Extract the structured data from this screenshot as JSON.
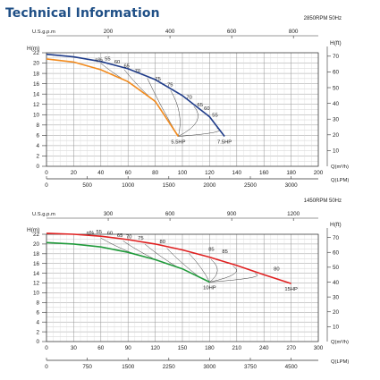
{
  "page": {
    "title": "Technical Information"
  },
  "chart_data": [
    {
      "type": "line",
      "header": "2850RPM  50Hz",
      "xlabel": "Q(m³/h)",
      "x2label": "Q(LPM)",
      "ylabel": "H(m)",
      "y2label": "H(ft)",
      "top_label": "U.S.g.p.m",
      "xlim": [
        0,
        200
      ],
      "ylim": [
        0,
        22
      ],
      "xticks": [
        0,
        20,
        40,
        60,
        80,
        100,
        120,
        140,
        160,
        180,
        200
      ],
      "yticks": [
        0,
        2,
        4,
        6,
        8,
        10,
        12,
        14,
        16,
        18,
        20,
        22
      ],
      "x2ticks": [
        "0",
        "500",
        "1000",
        "1500",
        "2000",
        "2500",
        "3000"
      ],
      "x2_lpm": [
        0,
        500,
        1000,
        1500,
        2000,
        2500,
        3000
      ],
      "x3ticks": [
        "200",
        "400",
        "600",
        "800"
      ],
      "x3_gpm": [
        200,
        400,
        600,
        800
      ],
      "y2ticks": [
        "70",
        "60",
        "50",
        "40",
        "30",
        "20",
        "10"
      ],
      "y2_ft": [
        70,
        60,
        50,
        40,
        30,
        20,
        10
      ],
      "grid": true,
      "series": [
        {
          "name": "7.5HP",
          "color": "#1f3c8a",
          "x": [
            0,
            20,
            40,
            60,
            80,
            100,
            120,
            131
          ],
          "y": [
            21.7,
            21.2,
            20.3,
            18.9,
            16.8,
            13.7,
            9.6,
            5.8
          ]
        },
        {
          "name": "5.5HP",
          "color": "#f28a1c",
          "x": [
            0,
            20,
            40,
            60,
            80,
            97
          ],
          "y": [
            20.8,
            20.2,
            18.7,
            16.4,
            12.6,
            5.8
          ]
        }
      ],
      "efficiency_label": "η%",
      "efficiency_labels": [
        {
          "text": "55",
          "x": 45,
          "y": 20.2
        },
        {
          "text": "60",
          "x": 52,
          "y": 19.6
        },
        {
          "text": "65",
          "x": 59,
          "y": 18.8
        },
        {
          "text": "70",
          "x": 67,
          "y": 17.8
        },
        {
          "text": "75",
          "x": 82,
          "y": 16.3
        },
        {
          "text": "75",
          "x": 91,
          "y": 15.2
        },
        {
          "text": "70",
          "x": 105,
          "y": 12.7
        },
        {
          "text": "65",
          "x": 113,
          "y": 11.3
        },
        {
          "text": "60",
          "x": 118,
          "y": 10.6
        },
        {
          "text": "55",
          "x": 124,
          "y": 9.3
        }
      ]
    },
    {
      "type": "line",
      "header": "1450RPM  50Hz",
      "xlabel": "Q(m³/h)",
      "x2label": "Q(LPM)",
      "ylabel": "H(m)",
      "y2label": "H(ft)",
      "top_label": "U.S.g.p.m",
      "xlim": [
        0,
        300
      ],
      "ylim": [
        0,
        22
      ],
      "xticks": [
        0,
        30,
        60,
        90,
        120,
        150,
        180,
        210,
        240,
        270,
        300
      ],
      "yticks": [
        0,
        2,
        4,
        6,
        8,
        10,
        12,
        14,
        16,
        18,
        20,
        22
      ],
      "x2ticks": [
        "0",
        "750",
        "1500",
        "2250",
        "3000",
        "3750",
        "4500"
      ],
      "x2_lpm": [
        0,
        750,
        1500,
        2250,
        3000,
        3750,
        4500
      ],
      "x3ticks": [
        "300",
        "600",
        "900",
        "1200"
      ],
      "x3_gpm": [
        300,
        600,
        900,
        1200
      ],
      "y2ticks": [
        "70",
        "60",
        "50",
        "40",
        "30",
        "20",
        "10"
      ],
      "y2_ft": [
        70,
        60,
        50,
        40,
        30,
        20,
        10
      ],
      "grid": true,
      "series": [
        {
          "name": "15HP",
          "color": "#e02020",
          "x": [
            0,
            30,
            60,
            90,
            120,
            150,
            180,
            210,
            240,
            270
          ],
          "y": [
            22.2,
            22.0,
            21.6,
            20.9,
            20.0,
            18.8,
            17.3,
            15.6,
            13.7,
            11.9
          ]
        },
        {
          "name": "10HP",
          "color": "#1f9a3a",
          "x": [
            0,
            30,
            60,
            90,
            120,
            150,
            180
          ],
          "y": [
            20.3,
            20.0,
            19.4,
            18.3,
            16.8,
            14.9,
            12.2
          ]
        }
      ],
      "efficiency_label": "η%",
      "efficiency_labels": [
        {
          "text": "55",
          "x": 58,
          "y": 21.8
        },
        {
          "text": "60",
          "x": 70,
          "y": 21.5
        },
        {
          "text": "65",
          "x": 81,
          "y": 21.1
        },
        {
          "text": "70",
          "x": 91,
          "y": 20.8
        },
        {
          "text": "75",
          "x": 104,
          "y": 20.5
        },
        {
          "text": "80",
          "x": 128,
          "y": 19.8
        },
        {
          "text": "85",
          "x": 182,
          "y": 18.2
        },
        {
          "text": "85",
          "x": 197,
          "y": 17.8
        },
        {
          "text": "80",
          "x": 254,
          "y": 14.2
        }
      ]
    }
  ]
}
